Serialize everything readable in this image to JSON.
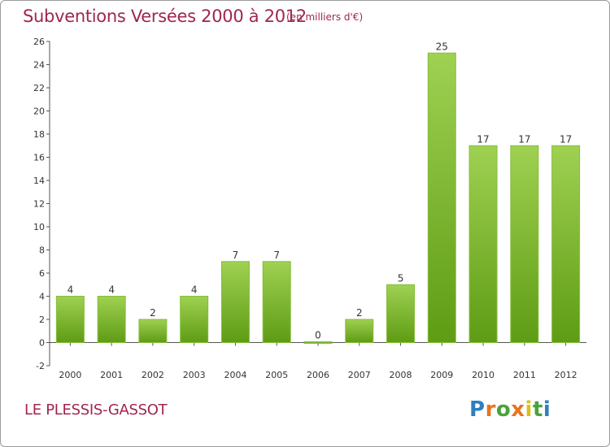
{
  "title": "Subventions Versées 2000 à 2012",
  "subtitle": "(en milliers d'€)",
  "commune": "LE PLESSIS-GASSOT",
  "brand": {
    "letters": [
      "P",
      "r",
      "o",
      "x",
      "i",
      "t",
      "i"
    ],
    "colors": [
      "#2f7fc1",
      "#e8741e",
      "#4aa33a",
      "#e8741e",
      "#d8c21a",
      "#4aa33a",
      "#2f7fc1"
    ]
  },
  "colors": {
    "bar_light": "#9fd152",
    "bar_dark": "#5e9c14",
    "title": "#a0264f"
  },
  "chart_data": {
    "type": "bar",
    "categories": [
      "2000",
      "2001",
      "2002",
      "2003",
      "2004",
      "2005",
      "2006",
      "2007",
      "2008",
      "2009",
      "2010",
      "2011",
      "2012"
    ],
    "values": [
      4,
      4,
      2,
      4,
      7,
      7,
      0,
      2,
      5,
      25,
      17,
      17,
      17
    ],
    "data_labels": [
      "4",
      "4",
      "2",
      "4",
      "7",
      "7",
      "0",
      "2",
      "5",
      "25",
      "17",
      "17",
      "17"
    ],
    "ylim": [
      -2,
      26
    ],
    "yticks": [
      -2,
      0,
      2,
      4,
      6,
      8,
      10,
      12,
      14,
      16,
      18,
      20,
      22,
      24,
      26
    ],
    "ytick_labels": [
      "-2",
      "0",
      "2",
      "4",
      "6",
      "8",
      "10",
      "12",
      "14",
      "16",
      "18",
      "20",
      "22",
      "24",
      "26"
    ],
    "grid": false,
    "xlabel": "",
    "ylabel": ""
  }
}
